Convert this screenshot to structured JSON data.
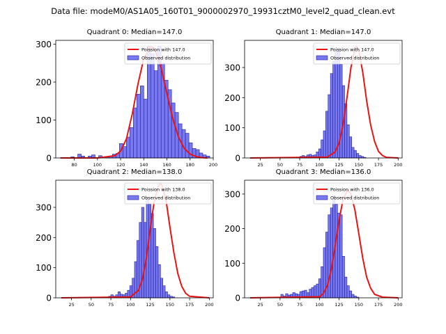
{
  "figure_title": "Data file: modeM0/AS1A05_160T01_9000002970_19931cztM0_level2_quad_clean.evt",
  "colors": {
    "bar_fill": "#7878f0",
    "bar_edge": "#1e1e9a",
    "line": "#ee1111"
  },
  "chart_data": [
    {
      "type": "bar",
      "title": "Quadrant 0: Median=147.0",
      "legend": [
        "Poission with 147.0",
        "Observed distribution"
      ],
      "legend_position": "top-right",
      "xlim": [
        64,
        200
      ],
      "ylim": [
        0,
        310
      ],
      "xticks": [
        80,
        100,
        120,
        140,
        160,
        180,
        200
      ],
      "yticks": [
        0,
        100,
        200,
        300
      ],
      "bins": {
        "start": 68,
        "width": 3,
        "values": [
          0,
          0,
          0,
          3,
          0,
          10,
          5,
          0,
          5,
          8,
          0,
          6,
          0,
          3,
          5,
          10,
          12,
          38,
          30,
          55,
          80,
          132,
          168,
          190,
          155,
          295,
          275,
          230,
          295,
          250,
          205,
          180,
          145,
          120,
          90,
          75,
          65,
          40,
          25,
          22,
          13,
          8,
          5
        ]
      },
      "poisson_curve": {
        "x": [
          68,
          100,
          115,
          120,
          125,
          130,
          135,
          140,
          145,
          147,
          150,
          155,
          160,
          165,
          170,
          175,
          180,
          185,
          190,
          195
        ],
        "y": [
          0,
          0,
          6,
          18,
          50,
          115,
          195,
          262,
          290,
          293,
          282,
          238,
          170,
          105,
          55,
          25,
          10,
          4,
          1,
          0
        ]
      }
    },
    {
      "type": "bar",
      "title": "Quadrant 1: Median=147.0",
      "legend": [
        "Poission with 147.0",
        "Observed distribution"
      ],
      "legend_position": "top-right",
      "xlim": [
        5,
        205
      ],
      "ylim": [
        0,
        390
      ],
      "xticks": [
        25,
        50,
        75,
        100,
        125,
        150,
        175,
        200
      ],
      "yticks": [
        0,
        100,
        200,
        300
      ],
      "bins": {
        "start": 12,
        "width": 3,
        "values": [
          0,
          0,
          0,
          0,
          0,
          0,
          0,
          0,
          0,
          0,
          0,
          0,
          0,
          0,
          0,
          0,
          0,
          0,
          0,
          0,
          0,
          5,
          8,
          5,
          10,
          12,
          8,
          10,
          20,
          30,
          60,
          90,
          155,
          210,
          280,
          320,
          355,
          365,
          310,
          240,
          180,
          110,
          70,
          35,
          25,
          15,
          8,
          5,
          2,
          0,
          0,
          0,
          0,
          0,
          0,
          0,
          0,
          0,
          0,
          0,
          0,
          0,
          0
        ]
      },
      "poisson_curve": {
        "x": [
          12,
          110,
          120,
          125,
          130,
          135,
          140,
          145,
          147,
          150,
          155,
          160,
          165,
          170,
          175,
          180,
          185,
          200
        ],
        "y": [
          0,
          3,
          20,
          50,
          110,
          200,
          300,
          362,
          370,
          355,
          285,
          190,
          110,
          55,
          22,
          8,
          2,
          0
        ]
      }
    },
    {
      "type": "bar",
      "title": "Quadrant 2: Median=138.0",
      "legend": [
        "Poission with 138.0",
        "Observed distribution"
      ],
      "legend_position": "top-right",
      "xlim": [
        5,
        205
      ],
      "ylim": [
        0,
        390
      ],
      "xticks": [
        25,
        50,
        75,
        100,
        125,
        150,
        175,
        200
      ],
      "yticks": [
        0,
        100,
        200,
        300
      ],
      "bins": {
        "start": 12,
        "width": 3,
        "values": [
          0,
          0,
          0,
          0,
          0,
          0,
          0,
          0,
          0,
          0,
          0,
          0,
          0,
          0,
          0,
          0,
          0,
          0,
          0,
          0,
          5,
          10,
          5,
          10,
          20,
          12,
          10,
          15,
          25,
          40,
          65,
          120,
          190,
          250,
          300,
          250,
          330,
          310,
          280,
          230,
          170,
          110,
          65,
          40,
          20,
          10,
          5,
          3,
          0,
          0,
          0,
          0,
          0,
          0,
          0,
          0,
          0,
          0,
          0,
          0,
          0,
          0,
          0
        ]
      },
      "poisson_curve": {
        "x": [
          12,
          100,
          110,
          115,
          120,
          125,
          130,
          135,
          138,
          140,
          145,
          150,
          155,
          160,
          165,
          170,
          175,
          200
        ],
        "y": [
          0,
          3,
          25,
          60,
          130,
          230,
          320,
          370,
          378,
          372,
          325,
          235,
          150,
          80,
          38,
          15,
          5,
          0
        ]
      }
    },
    {
      "type": "bar",
      "title": "Quadrant 3: Median=136.0",
      "legend": [
        "Poission with 136.0",
        "Observed distribution"
      ],
      "legend_position": "top-right",
      "xlim": [
        5,
        205
      ],
      "ylim": [
        0,
        340
      ],
      "xticks": [
        25,
        50,
        75,
        100,
        125,
        150,
        175,
        200
      ],
      "yticks": [
        0,
        100,
        200,
        300
      ],
      "bins": {
        "start": 12,
        "width": 3,
        "values": [
          0,
          0,
          0,
          0,
          0,
          0,
          0,
          0,
          0,
          0,
          0,
          0,
          0,
          10,
          5,
          12,
          8,
          10,
          15,
          12,
          10,
          18,
          20,
          22,
          15,
          25,
          30,
          35,
          40,
          55,
          90,
          145,
          190,
          240,
          260,
          290,
          270,
          245,
          240,
          120,
          60,
          35,
          20,
          10,
          5,
          2,
          0,
          0,
          0,
          0,
          0,
          0,
          0,
          0,
          0,
          0,
          0,
          0,
          0,
          0,
          0,
          0,
          0
        ]
      },
      "poisson_curve": {
        "x": [
          12,
          100,
          105,
          110,
          115,
          120,
          125,
          130,
          136,
          140,
          145,
          150,
          155,
          160,
          165,
          170,
          180,
          200
        ],
        "y": [
          0,
          3,
          12,
          35,
          80,
          150,
          225,
          285,
          312,
          300,
          255,
          185,
          115,
          60,
          28,
          10,
          2,
          0
        ]
      }
    }
  ]
}
